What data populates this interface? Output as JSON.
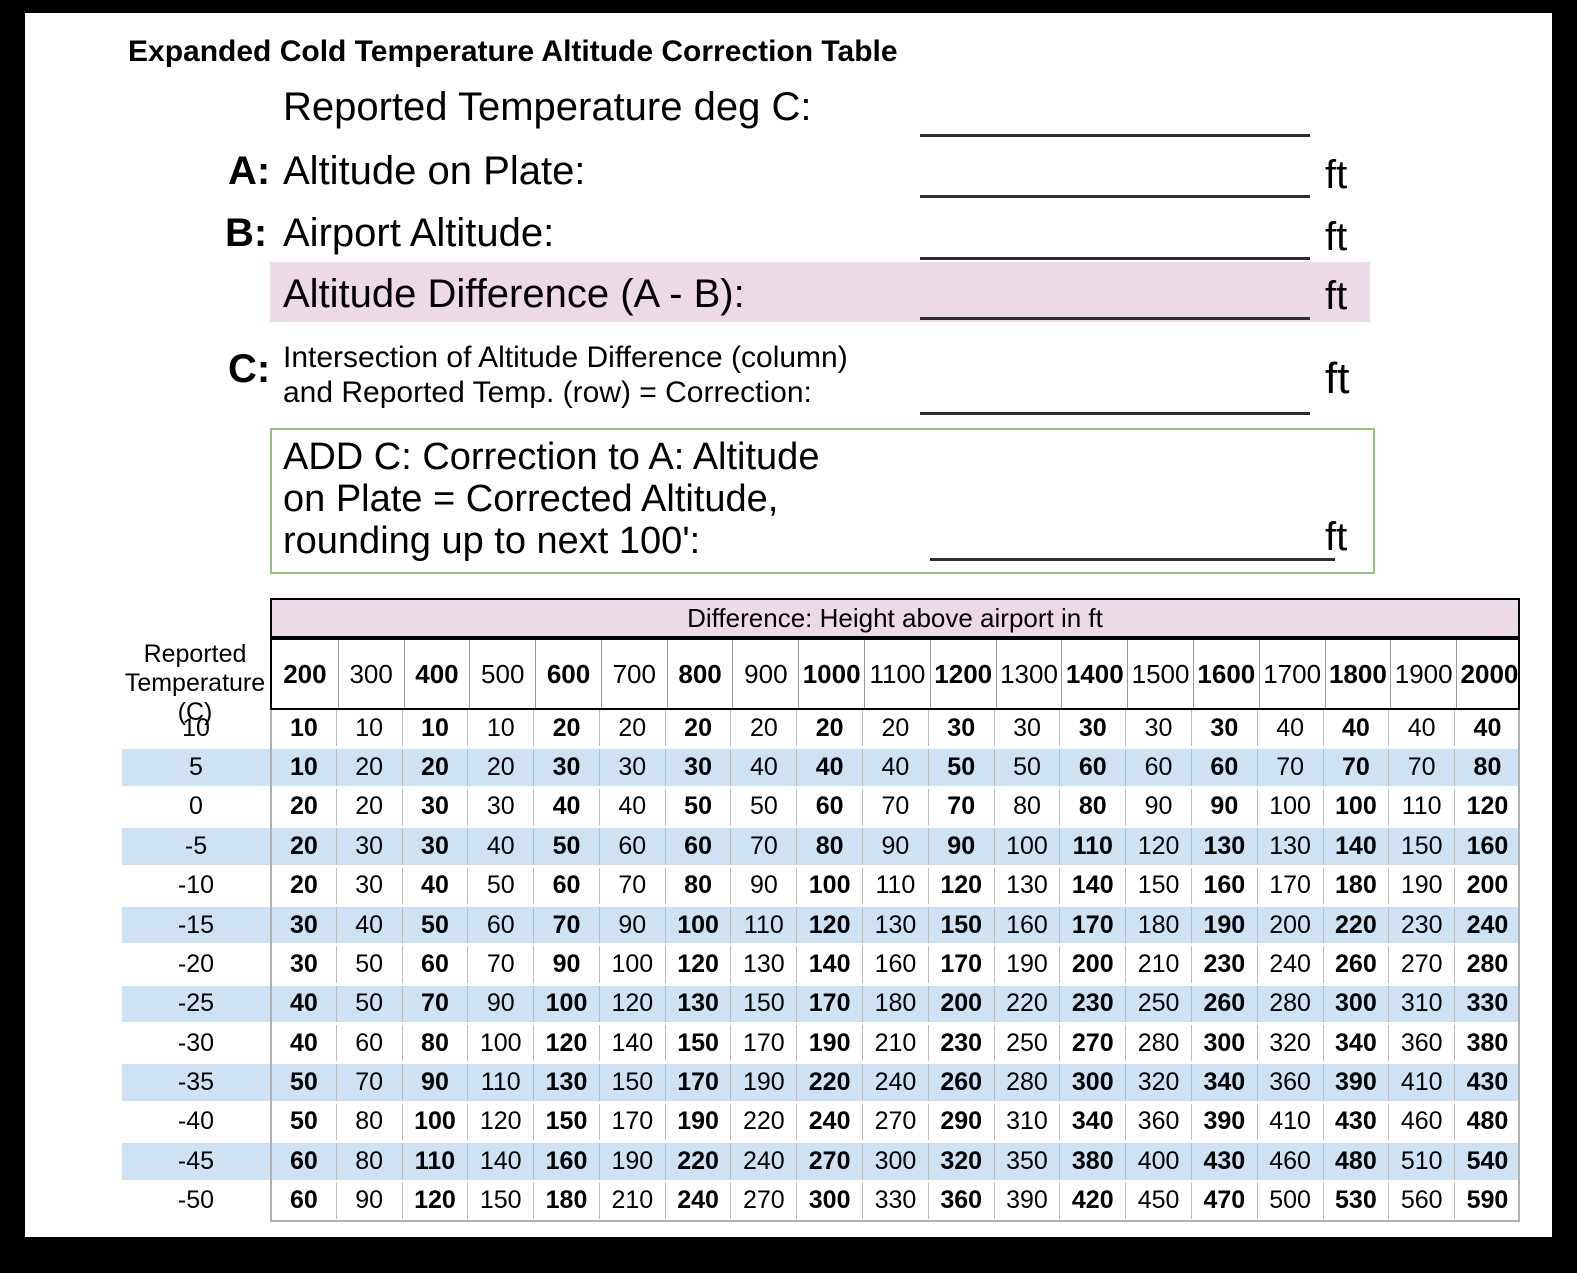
{
  "title": "Expanded Cold Temperature Altitude Correction Table",
  "form": {
    "reported_temp": {
      "label": "Reported Temperature deg C:"
    },
    "row_a": {
      "prefix": "A:",
      "label": "Altitude on Plate:",
      "unit": "ft"
    },
    "row_b": {
      "prefix": "B:",
      "label": "Airport Altitude:",
      "unit": "ft"
    },
    "row_diff": {
      "label": "Altitude Difference (A - B):",
      "unit": "ft"
    },
    "row_c": {
      "prefix": "C:",
      "label_line1": "Intersection of Altitude Difference (column)",
      "label_line2": "and Reported Temp. (row) = Correction:",
      "unit": "ft"
    },
    "add_box": {
      "line1": "ADD C: Correction to A: Altitude",
      "line2": "on Plate = Corrected Altitude,",
      "line3": "rounding up to next 100':",
      "unit": "ft"
    }
  },
  "table": {
    "band_title": "Difference: Height above airport in ft",
    "corner": [
      "Reported",
      "Temperature",
      "(C)"
    ],
    "columns": [
      200,
      300,
      400,
      500,
      600,
      700,
      800,
      900,
      1000,
      1100,
      1200,
      1300,
      1400,
      1500,
      1600,
      1700,
      1800,
      1900,
      2000
    ],
    "rows": [
      {
        "temp": "10",
        "values": [
          10,
          10,
          10,
          10,
          20,
          20,
          20,
          20,
          20,
          20,
          30,
          30,
          30,
          30,
          30,
          40,
          40,
          40,
          40
        ]
      },
      {
        "temp": "5",
        "values": [
          10,
          20,
          20,
          20,
          30,
          30,
          30,
          40,
          40,
          40,
          50,
          50,
          60,
          60,
          60,
          70,
          70,
          70,
          80
        ]
      },
      {
        "temp": "0",
        "values": [
          20,
          20,
          30,
          30,
          40,
          40,
          50,
          50,
          60,
          70,
          70,
          80,
          80,
          90,
          90,
          100,
          100,
          110,
          120
        ]
      },
      {
        "temp": "-5",
        "values": [
          20,
          30,
          30,
          40,
          50,
          60,
          60,
          70,
          80,
          90,
          90,
          100,
          110,
          120,
          130,
          130,
          140,
          150,
          160
        ]
      },
      {
        "temp": "-10",
        "values": [
          20,
          30,
          40,
          50,
          60,
          70,
          80,
          90,
          100,
          110,
          120,
          130,
          140,
          150,
          160,
          170,
          180,
          190,
          200
        ]
      },
      {
        "temp": "-15",
        "values": [
          30,
          40,
          50,
          60,
          70,
          90,
          100,
          110,
          120,
          130,
          150,
          160,
          170,
          180,
          190,
          200,
          220,
          230,
          240
        ]
      },
      {
        "temp": "-20",
        "values": [
          30,
          50,
          60,
          70,
          90,
          100,
          120,
          130,
          140,
          160,
          170,
          190,
          200,
          210,
          230,
          240,
          260,
          270,
          280
        ]
      },
      {
        "temp": "-25",
        "values": [
          40,
          50,
          70,
          90,
          100,
          120,
          130,
          150,
          170,
          180,
          200,
          220,
          230,
          250,
          260,
          280,
          300,
          310,
          330
        ]
      },
      {
        "temp": "-30",
        "values": [
          40,
          60,
          80,
          100,
          120,
          140,
          150,
          170,
          190,
          210,
          230,
          250,
          270,
          280,
          300,
          320,
          340,
          360,
          380
        ]
      },
      {
        "temp": "-35",
        "values": [
          50,
          70,
          90,
          110,
          130,
          150,
          170,
          190,
          220,
          240,
          260,
          280,
          300,
          320,
          340,
          360,
          390,
          410,
          430
        ]
      },
      {
        "temp": "-40",
        "values": [
          50,
          80,
          100,
          120,
          150,
          170,
          190,
          220,
          240,
          270,
          290,
          310,
          340,
          360,
          390,
          410,
          430,
          460,
          480
        ]
      },
      {
        "temp": "-45",
        "values": [
          60,
          80,
          110,
          140,
          160,
          190,
          220,
          240,
          270,
          300,
          320,
          350,
          380,
          400,
          430,
          460,
          480,
          510,
          540
        ]
      },
      {
        "temp": "-50",
        "values": [
          60,
          90,
          120,
          150,
          180,
          210,
          240,
          270,
          300,
          330,
          360,
          390,
          420,
          450,
          470,
          500,
          530,
          560,
          590
        ]
      }
    ]
  },
  "colors": {
    "pink": "#ecdae6",
    "stripe": "#cfe2f3",
    "green": "#93c47d"
  }
}
